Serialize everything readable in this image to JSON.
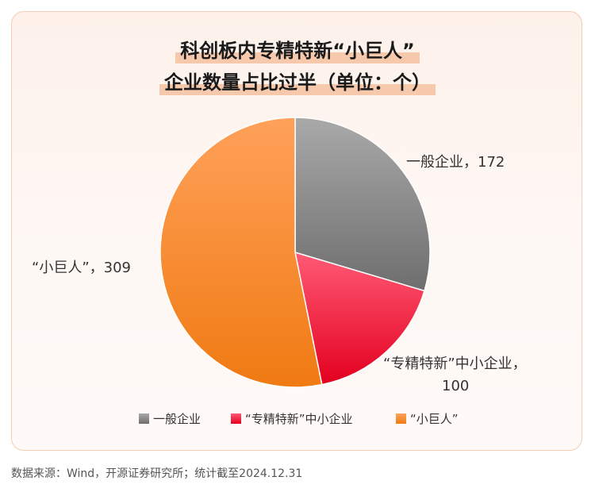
{
  "chart_data": {
    "type": "pie",
    "title_line1": "科创板内专精特新“小巨人”",
    "title_line2": "企业数量占比过半（单位：个）",
    "slices": [
      {
        "name": "一般企业",
        "value": 172,
        "label_line1": "一般企业，172",
        "label_line2": "",
        "color_top": "#a9a9a9",
        "color_bottom": "#6e6e6e"
      },
      {
        "name": "“专精特新”中小企业",
        "value": 100,
        "label_line1": "“专精特新”中小企业，",
        "label_line2": "100",
        "color_top": "#ff5a75",
        "color_bottom": "#e3001f"
      },
      {
        "name": "“小巨人”",
        "value": 309,
        "label_line1": "“小巨人”，309",
        "label_line2": "",
        "color_top": "#ffa15a",
        "color_bottom": "#f07a12"
      }
    ],
    "legend": [
      "一般企业",
      "“专精特新”中小企业",
      "“小巨人”"
    ],
    "legend_placement": "bottom"
  },
  "source": "数据来源：Wind，开源证券研究所；统计截至2024.12.31"
}
